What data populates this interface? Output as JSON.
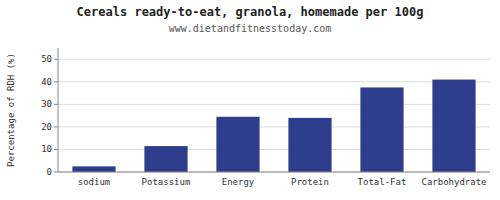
{
  "chart_data": {
    "type": "bar",
    "title": "Cereals ready-to-eat, granola, homemade per 100g",
    "subtitle": "www.dietandfitnesstoday.com",
    "ylabel": "Percentage of RDH (%)",
    "categories": [
      "sodium",
      "Potassium",
      "Energy",
      "Protein",
      "Total-Fat",
      "Carbohydrate"
    ],
    "values": [
      2.5,
      11.5,
      24.5,
      24.0,
      37.5,
      41.0
    ],
    "color": "#2e3d8c",
    "ylim": [
      0,
      55
    ],
    "yticks": [
      0,
      10,
      20,
      30,
      40,
      50
    ],
    "grid": true
  }
}
